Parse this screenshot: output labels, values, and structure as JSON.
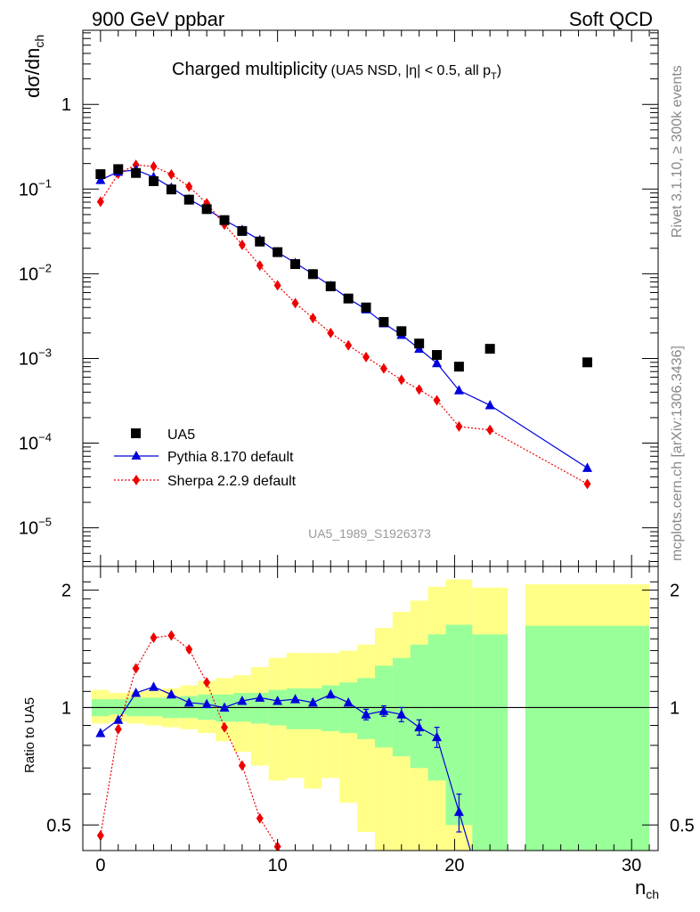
{
  "header": {
    "left_label": "900 GeV ppbar",
    "right_label": "Soft QCD",
    "title_main": "Charged multiplicity",
    "title_sub_a": "(UA5 NSD, |",
    "title_sub_eta": "η",
    "title_sub_b": "| < 0.5, all p",
    "title_sub_T": "T",
    "title_sub_c": ")",
    "analysis_id": "UA5_1989_S1926373",
    "side_rivet": "Rivet 3.1.10, ≥ 300k events",
    "side_mcplots": "mcplots.cern.ch [arXiv:1306.3436]"
  },
  "legend": {
    "data_label": "UA5",
    "pythia_label": "Pythia 8.170 default",
    "sherpa_label": "Sherpa 2.2.9 default"
  },
  "axes": {
    "upper_ylabel": "dσ/dn",
    "upper_ylabel_sub": "ch",
    "lower_ylabel": "Ratio to UA5",
    "xlabel": "n",
    "xlabel_sub": "ch"
  },
  "colors": {
    "data": "#000000",
    "pythia": "#0000dd",
    "sherpa": "#ee0000",
    "band_inner": "#99ff99",
    "band_outer": "#ffff88"
  },
  "chart_data": [
    {
      "type": "scatter",
      "panel": "main",
      "yscale": "log",
      "xlim": [
        -1,
        31.5
      ],
      "ylim": [
        3.5e-06,
        7.5
      ],
      "x_ticks": [
        "0",
        "10",
        "20",
        "30"
      ],
      "y_ticks": [
        {
          "value": 1,
          "label": "1"
        },
        {
          "value": 0.1,
          "label": "10",
          "exp": "−1"
        },
        {
          "value": 0.01,
          "label": "10",
          "exp": "−2"
        },
        {
          "value": 0.001,
          "label": "10",
          "exp": "−3"
        },
        {
          "value": 0.0001,
          "label": "10",
          "exp": "−4"
        },
        {
          "value": 1e-05,
          "label": "10",
          "exp": "−5"
        }
      ],
      "series": [
        {
          "name": "UA5",
          "marker": "square",
          "x": [
            0,
            1,
            2,
            3,
            4,
            5,
            6,
            7,
            8,
            9,
            10,
            11,
            12,
            13,
            14,
            15,
            16,
            17,
            18,
            19,
            20.25,
            22,
            27.5
          ],
          "y": [
            0.15,
            0.172,
            0.155,
            0.124,
            0.099,
            0.075,
            0.058,
            0.043,
            0.032,
            0.024,
            0.018,
            0.013,
            0.0099,
            0.0071,
            0.0051,
            0.004,
            0.0027,
            0.0021,
            0.0015,
            0.0011,
            0.0008,
            0.0013,
            0.0009
          ]
        },
        {
          "name": "Pythia 8.170 default",
          "marker": "triangle",
          "x": [
            0,
            1,
            2,
            3,
            4,
            5,
            6,
            7,
            8,
            9,
            10,
            11,
            12,
            13,
            14,
            15,
            16,
            17,
            18,
            19,
            20.25,
            22,
            27.5
          ],
          "y": [
            0.128,
            0.16,
            0.168,
            0.139,
            0.104,
            0.076,
            0.058,
            0.043,
            0.033,
            0.025,
            0.018,
            0.0134,
            0.0099,
            0.0072,
            0.0051,
            0.0038,
            0.0026,
            0.0019,
            0.0013,
            0.00088,
            0.00042,
            0.00028,
            5.1e-05
          ]
        },
        {
          "name": "Sherpa 2.2.9 default",
          "marker": "diamond",
          "x": [
            0,
            1,
            2,
            3,
            4,
            5,
            6,
            7,
            8,
            9,
            10,
            11,
            12,
            13,
            14,
            15,
            16,
            17,
            18,
            19,
            20.25,
            22,
            27.5
          ],
          "y": [
            0.071,
            0.152,
            0.193,
            0.185,
            0.149,
            0.107,
            0.068,
            0.038,
            0.022,
            0.0125,
            0.0073,
            0.0045,
            0.003,
            0.002,
            0.00143,
            0.00104,
            0.00076,
            0.00056,
            0.00043,
            0.00032,
            0.000157,
            0.000143,
            3.3e-05
          ]
        }
      ]
    },
    {
      "type": "line",
      "panel": "ratio",
      "yscale": "log",
      "xlim": [
        -1,
        31.5
      ],
      "ylim": [
        0.43,
        2.3
      ],
      "x_ticks": [
        "0",
        "10",
        "20",
        "30"
      ],
      "y_ticks": [
        {
          "value": 0.5,
          "label": "0.5"
        },
        {
          "value": 1,
          "label": "1"
        },
        {
          "value": 2,
          "label": "2"
        }
      ],
      "bands": {
        "bins": [
          [
            -0.5,
            0.5
          ],
          [
            0.5,
            1.5
          ],
          [
            1.5,
            2.5
          ],
          [
            2.5,
            3.5
          ],
          [
            3.5,
            4.5
          ],
          [
            4.5,
            5.5
          ],
          [
            5.5,
            6.5
          ],
          [
            6.5,
            7.5
          ],
          [
            7.5,
            8.5
          ],
          [
            8.5,
            9.5
          ],
          [
            9.5,
            10.5
          ],
          [
            10.5,
            11.5
          ],
          [
            11.5,
            12.5
          ],
          [
            12.5,
            13.5
          ],
          [
            13.5,
            14.5
          ],
          [
            14.5,
            15.5
          ],
          [
            15.5,
            16.5
          ],
          [
            16.5,
            17.5
          ],
          [
            17.5,
            18.5
          ],
          [
            18.5,
            19.5
          ],
          [
            19.5,
            21
          ],
          [
            21,
            23
          ],
          [
            24,
            31
          ]
        ],
        "inner_lo": [
          0.95,
          0.96,
          0.95,
          0.95,
          0.94,
          0.94,
          0.93,
          0.92,
          0.92,
          0.91,
          0.9,
          0.88,
          0.88,
          0.87,
          0.86,
          0.83,
          0.79,
          0.75,
          0.7,
          0.65,
          0.5,
          0.38,
          0.41
        ],
        "inner_hi": [
          1.05,
          1.05,
          1.06,
          1.06,
          1.06,
          1.07,
          1.08,
          1.08,
          1.09,
          1.09,
          1.11,
          1.12,
          1.12,
          1.14,
          1.16,
          1.19,
          1.28,
          1.34,
          1.45,
          1.54,
          1.63,
          1.54,
          1.62
        ],
        "outer_lo": [
          0.91,
          0.92,
          0.91,
          0.9,
          0.89,
          0.88,
          0.86,
          0.82,
          0.77,
          0.71,
          0.65,
          0.66,
          0.62,
          0.66,
          0.57,
          0.48,
          0.42,
          0.42,
          0.4,
          0.4,
          0.38,
          0.38,
          0.38
        ],
        "outer_hi": [
          1.11,
          1.09,
          1.1,
          1.11,
          1.12,
          1.14,
          1.17,
          1.19,
          1.21,
          1.27,
          1.34,
          1.38,
          1.38,
          1.38,
          1.4,
          1.45,
          1.6,
          1.76,
          1.88,
          2.04,
          2.13,
          2.03,
          2.07
        ]
      },
      "series": [
        {
          "name": "Pythia 8.170 default",
          "marker": "triangle",
          "x": [
            0,
            1,
            2,
            3,
            4,
            5,
            6,
            7,
            8,
            9,
            10,
            11,
            12,
            13,
            14,
            15,
            16,
            17,
            18,
            19,
            20.25,
            20.9
          ],
          "y": [
            0.86,
            0.93,
            1.09,
            1.13,
            1.08,
            1.03,
            1.02,
            1.0,
            1.04,
            1.06,
            1.04,
            1.05,
            1.03,
            1.08,
            1.03,
            0.96,
            0.98,
            0.96,
            0.89,
            0.84,
            0.54,
            0.43
          ],
          "err": [
            0,
            0,
            0,
            0,
            0,
            0,
            0,
            0,
            0,
            0,
            0,
            0,
            0,
            0,
            0,
            0.03,
            0.03,
            0.04,
            0.04,
            0.05,
            0.06,
            0
          ]
        },
        {
          "name": "Sherpa 2.2.9 default",
          "marker": "diamond",
          "x": [
            0,
            1,
            2,
            3,
            4,
            5,
            6,
            7,
            8,
            9,
            10,
            10.1
          ],
          "y": [
            0.47,
            0.88,
            1.26,
            1.51,
            1.53,
            1.41,
            1.16,
            0.89,
            0.71,
            0.52,
            0.44,
            0.43
          ]
        }
      ],
      "reference_line": 1
    }
  ]
}
